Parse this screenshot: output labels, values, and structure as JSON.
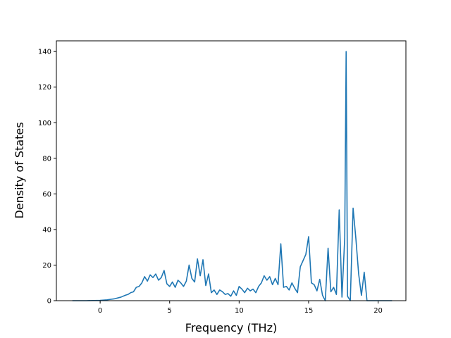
{
  "chart_data": {
    "type": "line",
    "title": "",
    "xlabel": "Frequency (THz)",
    "ylabel": "Density of States",
    "xlim": [
      -3.15,
      22.0
    ],
    "ylim": [
      0,
      146
    ],
    "xticks": [
      0,
      5,
      10,
      15,
      20
    ],
    "yticks": [
      0,
      20,
      40,
      60,
      80,
      100,
      120,
      140
    ],
    "grid": false,
    "legend": "none",
    "line_color": "#1f77b4",
    "series": [
      {
        "name": "",
        "x": [
          -2.0,
          -1.0,
          0.0,
          0.5,
          1.0,
          1.5,
          1.8,
          2.0,
          2.2,
          2.4,
          2.6,
          2.8,
          3.0,
          3.2,
          3.4,
          3.6,
          3.8,
          4.0,
          4.2,
          4.4,
          4.6,
          4.8,
          5.0,
          5.2,
          5.4,
          5.6,
          5.8,
          6.0,
          6.2,
          6.4,
          6.6,
          6.8,
          7.0,
          7.2,
          7.4,
          7.6,
          7.8,
          8.0,
          8.2,
          8.4,
          8.6,
          8.8,
          9.0,
          9.2,
          9.4,
          9.6,
          9.8,
          10.0,
          10.2,
          10.4,
          10.6,
          10.8,
          11.0,
          11.2,
          11.4,
          11.6,
          11.8,
          12.0,
          12.2,
          12.4,
          12.6,
          12.8,
          13.0,
          13.2,
          13.4,
          13.6,
          13.8,
          14.0,
          14.2,
          14.4,
          14.6,
          14.8,
          15.0,
          15.2,
          15.4,
          15.6,
          15.8,
          16.0,
          16.2,
          16.4,
          16.6,
          16.8,
          17.0,
          17.2,
          17.4,
          17.6,
          17.7,
          17.8,
          18.0,
          18.2,
          18.4,
          18.6,
          18.8,
          19.0,
          19.2,
          19.5,
          20.0,
          21.0
        ],
        "values": [
          0,
          0,
          0.2,
          0.5,
          1.0,
          2.0,
          3.0,
          3.5,
          4.5,
          5.0,
          7.5,
          8.0,
          10.0,
          13.5,
          11.0,
          14.5,
          13.0,
          15.0,
          11.5,
          13.0,
          17.0,
          9.5,
          8.0,
          10.5,
          7.5,
          11.5,
          10.0,
          8.0,
          11.0,
          20.0,
          12.5,
          10.5,
          23.5,
          14.0,
          23.0,
          8.5,
          15.0,
          4.5,
          6.0,
          3.5,
          6.0,
          5.0,
          3.5,
          4.0,
          2.5,
          5.5,
          3.0,
          8.0,
          6.5,
          4.5,
          7.0,
          5.5,
          6.5,
          4.5,
          8.0,
          10.0,
          14.0,
          11.5,
          13.5,
          9.0,
          12.5,
          9.0,
          32.0,
          7.5,
          8.0,
          6.0,
          10.0,
          7.0,
          4.5,
          19.0,
          22.5,
          26.0,
          36.0,
          10.0,
          9.0,
          5.5,
          12.0,
          3.0,
          0.0,
          29.5,
          5.0,
          7.5,
          3.5,
          51.0,
          2.0,
          35.5,
          140.0,
          2.5,
          0.0,
          52.0,
          35.0,
          15.0,
          3.0,
          16.0,
          0.0,
          0.0,
          0.0,
          0.0
        ]
      }
    ]
  }
}
